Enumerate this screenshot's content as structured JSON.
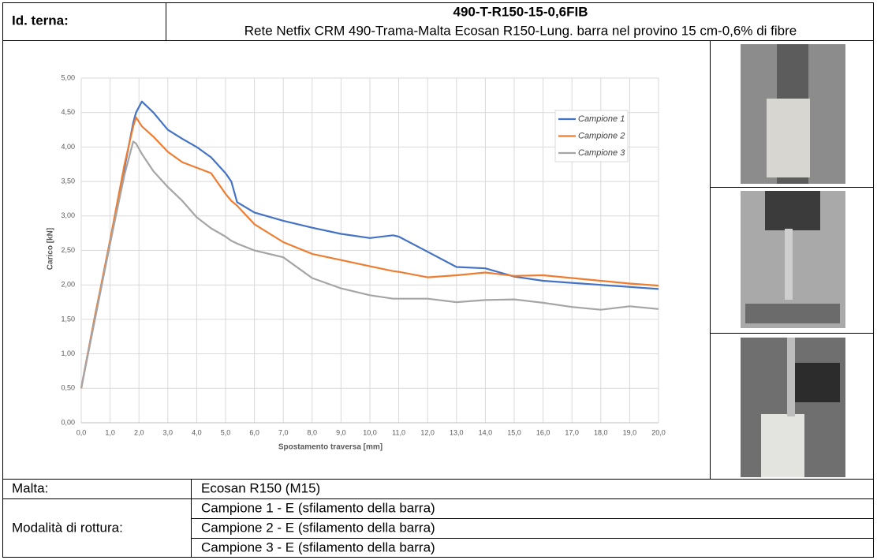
{
  "header": {
    "label": "Id. terna:",
    "title": "490-T-R150-15-0,6FIB",
    "subtitle": "Rete Netfix CRM 490-Trama-Malta Ecosan R150-Lung. barra nel provino 15 cm-0,6% di fibre"
  },
  "chart_data": {
    "type": "line",
    "x_label": "Spostamento traversa [mm]",
    "y_label": "Carico [kN]",
    "x": [
      0,
      0.5,
      1,
      1.5,
      1.8,
      1.9,
      2.1,
      2.5,
      3,
      3.5,
      4,
      4.5,
      5,
      5.2,
      5.4,
      6,
      7,
      8,
      9,
      10,
      10.8,
      11,
      12,
      13,
      14,
      15,
      16,
      17,
      18,
      19,
      20
    ],
    "series": [
      {
        "name": "Campione 1",
        "color": "#4472c4",
        "values": [
          0.5,
          1.6,
          2.6,
          3.7,
          4.35,
          4.5,
          4.66,
          4.5,
          4.25,
          4.12,
          4.0,
          3.85,
          3.62,
          3.5,
          3.2,
          3.05,
          2.93,
          2.83,
          2.74,
          2.68,
          2.72,
          2.7,
          2.48,
          2.26,
          2.24,
          2.12,
          2.06,
          2.03,
          2.0,
          1.97,
          1.94
        ]
      },
      {
        "name": "Campione 2",
        "color": "#ed7d31",
        "values": [
          0.5,
          1.6,
          2.65,
          3.75,
          4.3,
          4.43,
          4.3,
          4.15,
          3.93,
          3.78,
          3.7,
          3.62,
          3.32,
          3.22,
          3.15,
          2.88,
          2.62,
          2.45,
          2.36,
          2.27,
          2.2,
          2.19,
          2.11,
          2.14,
          2.18,
          2.13,
          2.14,
          2.1,
          2.06,
          2.02,
          1.99
        ]
      },
      {
        "name": "Campione 3",
        "color": "#a5a5a5",
        "values": [
          0.5,
          1.55,
          2.6,
          3.6,
          4.08,
          4.05,
          3.9,
          3.65,
          3.42,
          3.22,
          2.98,
          2.82,
          2.7,
          2.64,
          2.6,
          2.5,
          2.4,
          2.1,
          1.95,
          1.85,
          1.8,
          1.8,
          1.8,
          1.75,
          1.78,
          1.79,
          1.74,
          1.68,
          1.64,
          1.69,
          1.65
        ]
      }
    ],
    "xlim": [
      0,
      20
    ],
    "xticks": [
      {
        "value": 0,
        "label": "0,0"
      },
      {
        "value": 1,
        "label": "1,0"
      },
      {
        "value": 2,
        "label": "2,0"
      },
      {
        "value": 3,
        "label": "3,0"
      },
      {
        "value": 4,
        "label": "4,0"
      },
      {
        "value": 5,
        "label": "5,0"
      },
      {
        "value": 6,
        "label": "6,0"
      },
      {
        "value": 7,
        "label": "7,0"
      },
      {
        "value": 8,
        "label": "8,0"
      },
      {
        "value": 9,
        "label": "9,0"
      },
      {
        "value": 10,
        "label": "10,0"
      },
      {
        "value": 11,
        "label": "11,0"
      },
      {
        "value": 12,
        "label": "12,0"
      },
      {
        "value": 13,
        "label": "13,0"
      },
      {
        "value": 14,
        "label": "14,0"
      },
      {
        "value": 15,
        "label": "15,0"
      },
      {
        "value": 16,
        "label": "16,0"
      },
      {
        "value": 17,
        "label": "17,0"
      },
      {
        "value": 18,
        "label": "18,0"
      },
      {
        "value": 19,
        "label": "19,0"
      },
      {
        "value": 20,
        "label": "20,0"
      }
    ],
    "ylim": [
      0,
      5
    ],
    "yticks": [
      {
        "value": 0,
        "label": "0,00"
      },
      {
        "value": 0.5,
        "label": "0,50"
      },
      {
        "value": 1,
        "label": "1,00"
      },
      {
        "value": 1.5,
        "label": "1,50"
      },
      {
        "value": 2,
        "label": "2,00"
      },
      {
        "value": 2.5,
        "label": "2,50"
      },
      {
        "value": 3,
        "label": "3,00"
      },
      {
        "value": 3.5,
        "label": "3,50"
      },
      {
        "value": 4,
        "label": "4,00"
      },
      {
        "value": 4.5,
        "label": "4,50"
      },
      {
        "value": 5,
        "label": "5,00"
      }
    ],
    "grid": true,
    "legend": "upper right"
  },
  "malta": {
    "label": "Malta:",
    "value": "Ecosan R150 (M15)"
  },
  "rottura": {
    "label": "Modalità di rottura:",
    "values": [
      "Campione 1 - E (sfilamento della barra)",
      "Campione 2 - E (sfilamento della barra)",
      "Campione 3 - E (sfilamento della barra)"
    ]
  }
}
